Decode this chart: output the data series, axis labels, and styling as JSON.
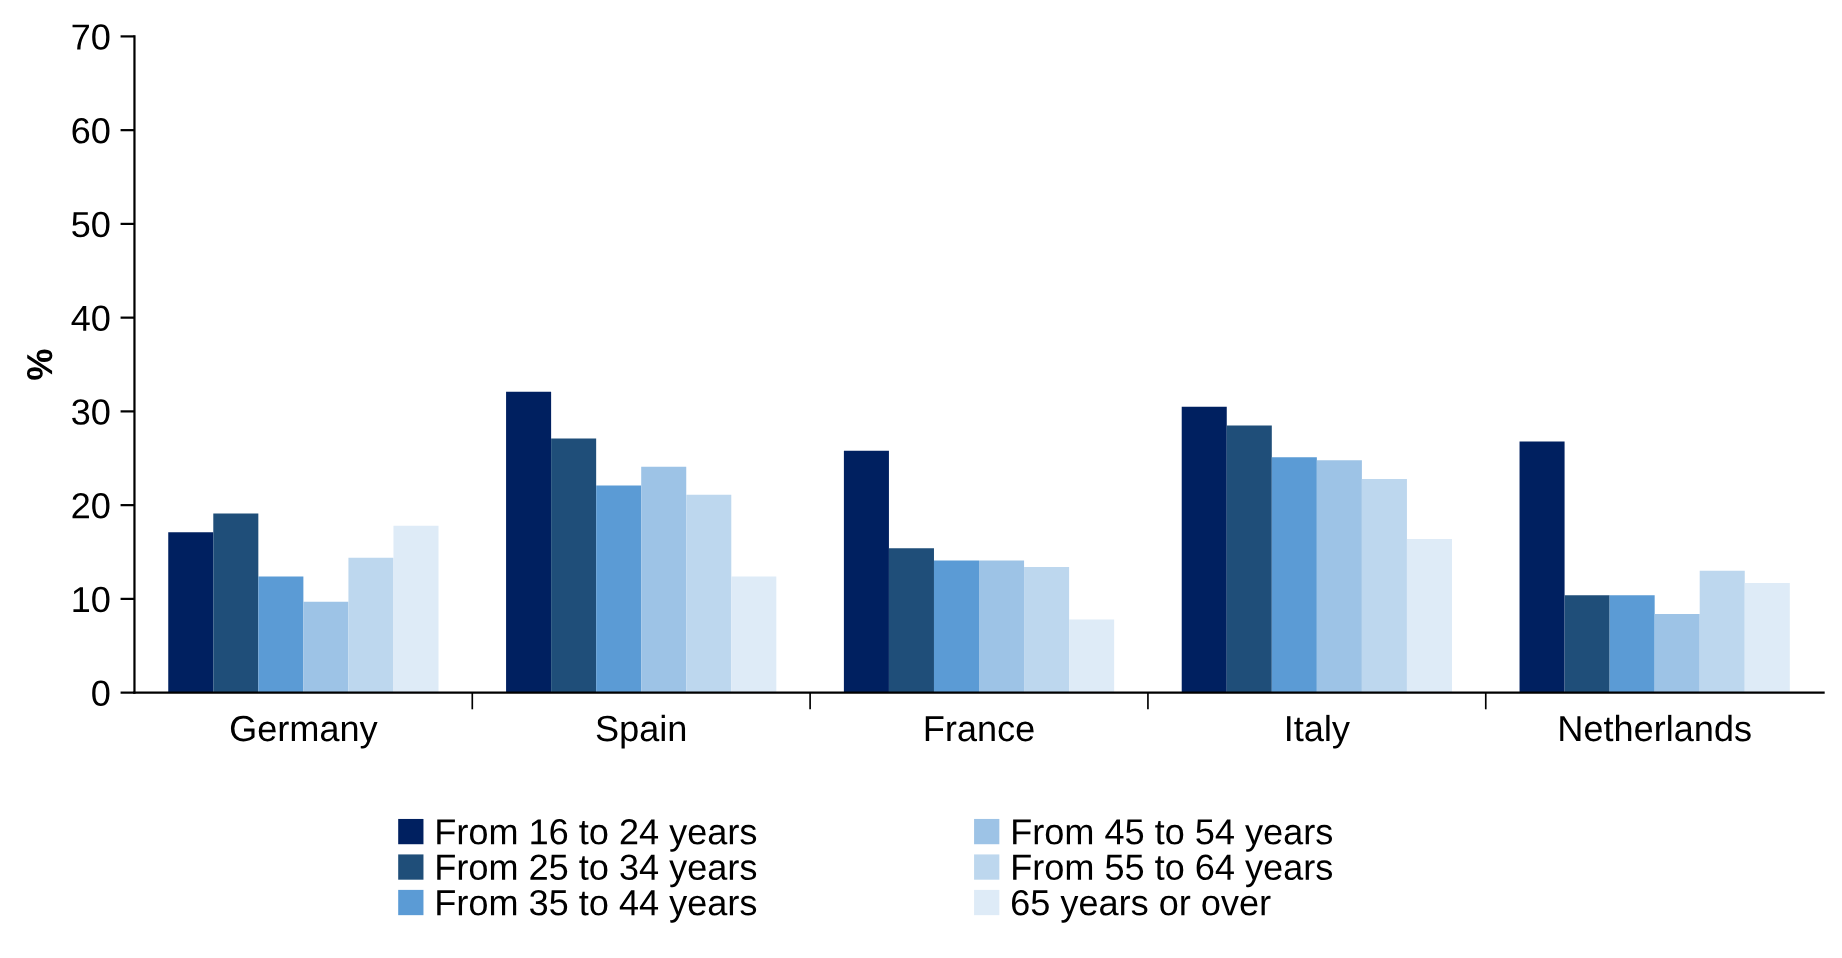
{
  "chart_data": {
    "type": "bar",
    "ylabel": "%",
    "categories": [
      "Germany",
      "Spain",
      "France",
      "Italy",
      "Netherlands"
    ],
    "series": [
      {
        "name": "From 16 to 24 years",
        "color": "#002060",
        "values": [
          17.1,
          32.1,
          25.8,
          30.5,
          26.8
        ]
      },
      {
        "name": "From 25 to 34 years",
        "color": "#1f4e79",
        "values": [
          19.1,
          27.1,
          15.4,
          28.5,
          10.4
        ]
      },
      {
        "name": "From 35 to 44 years",
        "color": "#5b9bd5",
        "values": [
          12.4,
          22.1,
          14.1,
          25.1,
          10.4
        ]
      },
      {
        "name": "From 45 to 54 years",
        "color": "#9dc3e6",
        "values": [
          9.7,
          24.1,
          14.1,
          24.8,
          8.4
        ]
      },
      {
        "name": "From 55 to 64 years",
        "color": "#bdd7ee",
        "values": [
          14.4,
          21.1,
          13.4,
          22.8,
          13.0
        ]
      },
      {
        "name": "65 years or over",
        "color": "#deebf7",
        "values": [
          17.8,
          12.4,
          7.8,
          16.4,
          11.7
        ]
      }
    ],
    "ylim": [
      0,
      70
    ],
    "yticks": [
      0,
      10,
      20,
      30,
      40,
      50,
      60,
      70
    ],
    "grid": false,
    "legend": "bottom"
  }
}
